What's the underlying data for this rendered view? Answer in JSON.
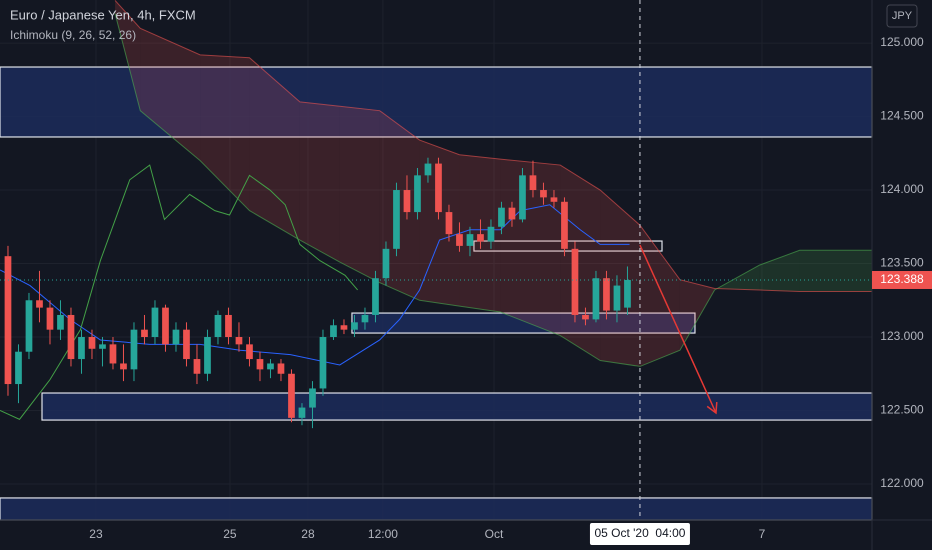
{
  "chart_data": {
    "type": "candlestick",
    "title": "Euro / Japanese Yen, 4h, FXCM",
    "subtitle": "Ichimoku (9, 26, 52, 26)",
    "currency": "JPY",
    "xlim": [
      -0.76,
      82.29
    ],
    "ylim": [
      121.755,
      125.293
    ],
    "yticks": [
      {
        "value": 125,
        "label": "125.000"
      },
      {
        "value": 124.5,
        "label": "124.500"
      },
      {
        "value": 124,
        "label": "124.000"
      },
      {
        "value": 123.5,
        "label": "123.500"
      },
      {
        "value": 123,
        "label": "123.000"
      },
      {
        "value": 122.5,
        "label": "122.500"
      },
      {
        "value": 122,
        "label": "122.000"
      }
    ],
    "xticks": [
      {
        "value": 8.38,
        "label": "23"
      },
      {
        "value": 21.14,
        "label": "25"
      },
      {
        "value": 28.57,
        "label": "28"
      },
      {
        "value": 35.71,
        "label": "12:00"
      },
      {
        "value": 46.29,
        "label": "Oct"
      },
      {
        "value": 71.81,
        "label": "7"
      }
    ],
    "up_color": "#26a69a",
    "down_color": "#ef5350",
    "open": [
      123.55,
      122.68,
      122.9,
      123.25,
      123.2,
      123.05,
      123.15,
      122.85,
      123.0,
      122.92,
      122.95,
      122.82,
      122.78,
      123.05,
      123.0,
      123.2,
      122.95,
      123.05,
      122.85,
      122.75,
      123.0,
      123.15,
      123.0,
      122.95,
      122.85,
      122.78,
      122.82,
      122.75,
      122.45,
      122.52,
      122.65,
      123.0,
      123.08,
      123.05,
      123.1,
      123.15,
      123.4,
      123.6,
      124.0,
      123.85,
      124.1,
      124.18,
      123.85,
      123.7,
      123.62,
      123.7,
      123.65,
      123.75,
      123.88,
      123.8,
      124.1,
      124.0,
      123.95,
      123.92,
      123.6,
      123.15,
      123.12,
      123.4,
      123.18,
      123.2
    ],
    "high": [
      123.62,
      122.95,
      123.3,
      123.45,
      123.25,
      123.25,
      123.2,
      123.05,
      123.05,
      123.0,
      123.0,
      122.95,
      123.1,
      123.15,
      123.25,
      123.22,
      123.1,
      123.1,
      122.95,
      123.05,
      123.18,
      123.2,
      123.1,
      123.0,
      122.9,
      122.85,
      122.85,
      122.78,
      122.55,
      122.7,
      123.05,
      123.12,
      123.12,
      123.15,
      123.2,
      123.45,
      123.65,
      124.05,
      124.1,
      124.15,
      124.22,
      124.22,
      123.9,
      123.78,
      123.75,
      123.8,
      123.8,
      123.92,
      123.92,
      124.15,
      124.2,
      124.05,
      124.0,
      123.95,
      123.65,
      123.2,
      123.45,
      123.45,
      123.42,
      123.48
    ],
    "low": [
      122.6,
      122.55,
      122.85,
      123.1,
      122.95,
      122.98,
      122.8,
      122.75,
      122.85,
      122.8,
      122.78,
      122.7,
      122.7,
      122.95,
      122.95,
      122.9,
      122.9,
      122.8,
      122.68,
      122.7,
      122.95,
      122.95,
      122.9,
      122.8,
      122.7,
      122.72,
      122.7,
      122.42,
      122.4,
      122.38,
      122.6,
      122.98,
      123.02,
      123.0,
      123.05,
      123.1,
      123.35,
      123.55,
      123.8,
      123.8,
      124.05,
      123.8,
      123.65,
      123.58,
      123.55,
      123.6,
      123.6,
      123.7,
      123.75,
      123.78,
      123.95,
      123.9,
      123.88,
      123.55,
      123.1,
      123.08,
      123.1,
      123.12,
      123.1,
      123.15
    ],
    "close": [
      122.68,
      122.9,
      123.25,
      123.2,
      123.05,
      123.15,
      122.85,
      123.0,
      122.92,
      122.95,
      122.82,
      122.78,
      123.05,
      123.0,
      123.2,
      122.95,
      123.05,
      122.85,
      122.75,
      123.0,
      123.15,
      123.0,
      122.95,
      122.85,
      122.78,
      122.82,
      122.75,
      122.45,
      122.52,
      122.65,
      123.0,
      123.08,
      123.05,
      123.1,
      123.15,
      123.4,
      123.6,
      124.0,
      123.85,
      124.1,
      124.18,
      123.85,
      123.7,
      123.62,
      123.7,
      123.65,
      123.75,
      123.88,
      123.8,
      124.1,
      124.0,
      123.95,
      123.92,
      123.6,
      123.15,
      123.12,
      123.4,
      123.18,
      123.35,
      123.388
    ],
    "last_price": 123.388,
    "cloud": {
      "x": [
        10.2,
        12.6,
        18.3,
        23.0,
        27.8,
        31.6,
        35.4,
        39.2,
        43.0,
        46.9,
        52.6,
        56.4,
        60.2,
        64.0,
        67.3,
        71.6,
        75.4,
        82.3
      ],
      "span_a": [
        125.2,
        124.54,
        124.2,
        123.86,
        123.66,
        123.51,
        123.37,
        123.25,
        123.21,
        123.17,
        123.01,
        122.84,
        122.8,
        122.91,
        123.32,
        123.49,
        123.59,
        123.59
      ],
      "span_b": [
        125.29,
        125.1,
        124.92,
        124.9,
        124.6,
        124.57,
        124.54,
        124.34,
        124.24,
        124.21,
        124.17,
        124.0,
        123.76,
        123.39,
        123.33,
        123.32,
        123.31,
        123.31
      ],
      "bull_color": "#4caf50",
      "bear_color": "#ef5350"
    },
    "lines": [
      {
        "color": "#2962ff",
        "x": [
          -0.76,
          2.1,
          5.9,
          8.8,
          13.5,
          18.3,
          22.1,
          26.9,
          31.6,
          35.4,
          37.3,
          39.2,
          41.1,
          44.0,
          46.9,
          48.8,
          51.6,
          54.5,
          56.4,
          59.2
        ],
        "values": [
          123.456,
          123.35,
          123.12,
          122.98,
          122.95,
          122.95,
          122.91,
          122.88,
          122.81,
          122.98,
          123.12,
          123.32,
          123.66,
          123.73,
          123.73,
          123.86,
          123.9,
          123.73,
          123.63,
          123.63
        ]
      },
      {
        "color": "#43a047",
        "x": [
          -0.76,
          1.1,
          4.0,
          6.9,
          8.8,
          11.6,
          13.5,
          14.9,
          17.3,
          19.7,
          21.1,
          23.0,
          24.95,
          26.4,
          27.8,
          29.7,
          32.1,
          33.3
        ],
        "values": [
          122.5,
          122.44,
          122.71,
          123.05,
          123.52,
          124.07,
          124.17,
          123.8,
          123.97,
          123.86,
          123.83,
          124.1,
          124.0,
          123.9,
          123.63,
          123.52,
          123.42,
          123.32
        ]
      }
    ],
    "zones": [
      {
        "x": [
          -0.76,
          82.29
        ],
        "y": [
          124.361,
          124.837
        ],
        "fill": "#1c2b5a"
      },
      {
        "x": [
          -0.76,
          82.29
        ],
        "y": [
          121.755,
          121.905
        ],
        "fill": "#1c2b5a"
      },
      {
        "x": [
          3.24,
          82.29
        ],
        "y": [
          122.435,
          122.619
        ],
        "fill": "#1c2b5a"
      },
      {
        "x": [
          32.76,
          65.43
        ],
        "y": [
          123.027,
          123.163
        ],
        "fill": "#1c2b5a"
      },
      {
        "x": [
          44.38,
          62.29
        ],
        "y": [
          123.585,
          123.653
        ],
        "fill": "none"
      }
    ],
    "arrow": {
      "x": [
        60.19,
        67.43
      ],
      "y": [
        123.626,
        122.483
      ],
      "color": "#e53935"
    },
    "crosshair": {
      "x": 60.19,
      "label": "05 Oct '20  04:00"
    }
  }
}
